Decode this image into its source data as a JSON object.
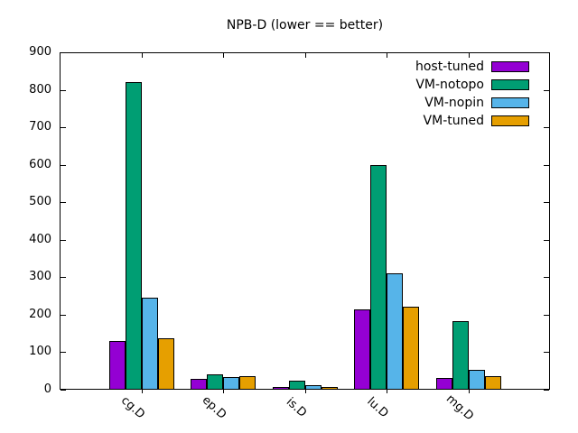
{
  "chart_data": {
    "type": "bar",
    "title": "NPB-D (lower == better)",
    "categories": [
      "cg.D",
      "ep.D",
      "is.D",
      "lu.D",
      "mg.D"
    ],
    "series": [
      {
        "name": "host-tuned",
        "color": "#9400d3",
        "values": [
          130,
          30,
          8,
          213,
          32
        ]
      },
      {
        "name": "VM-notopo",
        "color": "#009e73",
        "values": [
          820,
          41,
          23,
          598,
          184
        ]
      },
      {
        "name": "VM-nopin",
        "color": "#56b4e9",
        "values": [
          245,
          34,
          12,
          310,
          54
        ]
      },
      {
        "name": "VM-tuned",
        "color": "#e69f00",
        "values": [
          137,
          35,
          7,
          221,
          36
        ]
      }
    ],
    "xlabel": "",
    "ylabel": "",
    "ylim": [
      0,
      900
    ],
    "ytick_step": 100,
    "ytick_labels": [
      "0",
      "100",
      "200",
      "300",
      "400",
      "500",
      "600",
      "700",
      "800",
      "900"
    ],
    "grid": false,
    "legend_position": "top-right",
    "frame_color": "#000000",
    "background_color": "#ffffff"
  }
}
